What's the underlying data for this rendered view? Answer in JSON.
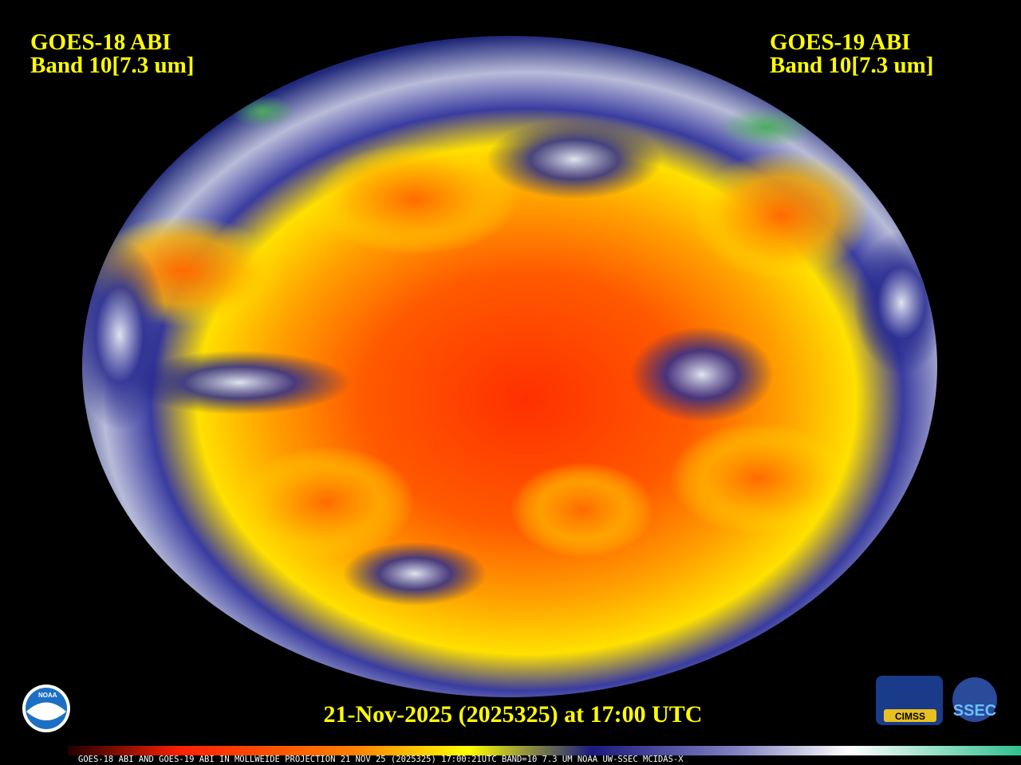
{
  "left_label": {
    "satellite": "GOES-18 ABI",
    "band": "Band 10[7.3 um]"
  },
  "right_label": {
    "satellite": "GOES-19 ABI",
    "band": "Band 10[7.3 um]"
  },
  "timestamp": "21-Nov-2025 (2025325) at 17:00 UTC",
  "caption": "GOES-18 ABI AND GOES-19 ABI IN MOLLWEIDE PROJECTION 21 NOV 25 (2025325) 17:00:21UTC BAND=10 7.3 UM NOAA UW-SSEC MCIDAS-X",
  "logos": {
    "noaa": "NOAA",
    "cimss": "CIMSS",
    "ssec": "SSEC"
  }
}
